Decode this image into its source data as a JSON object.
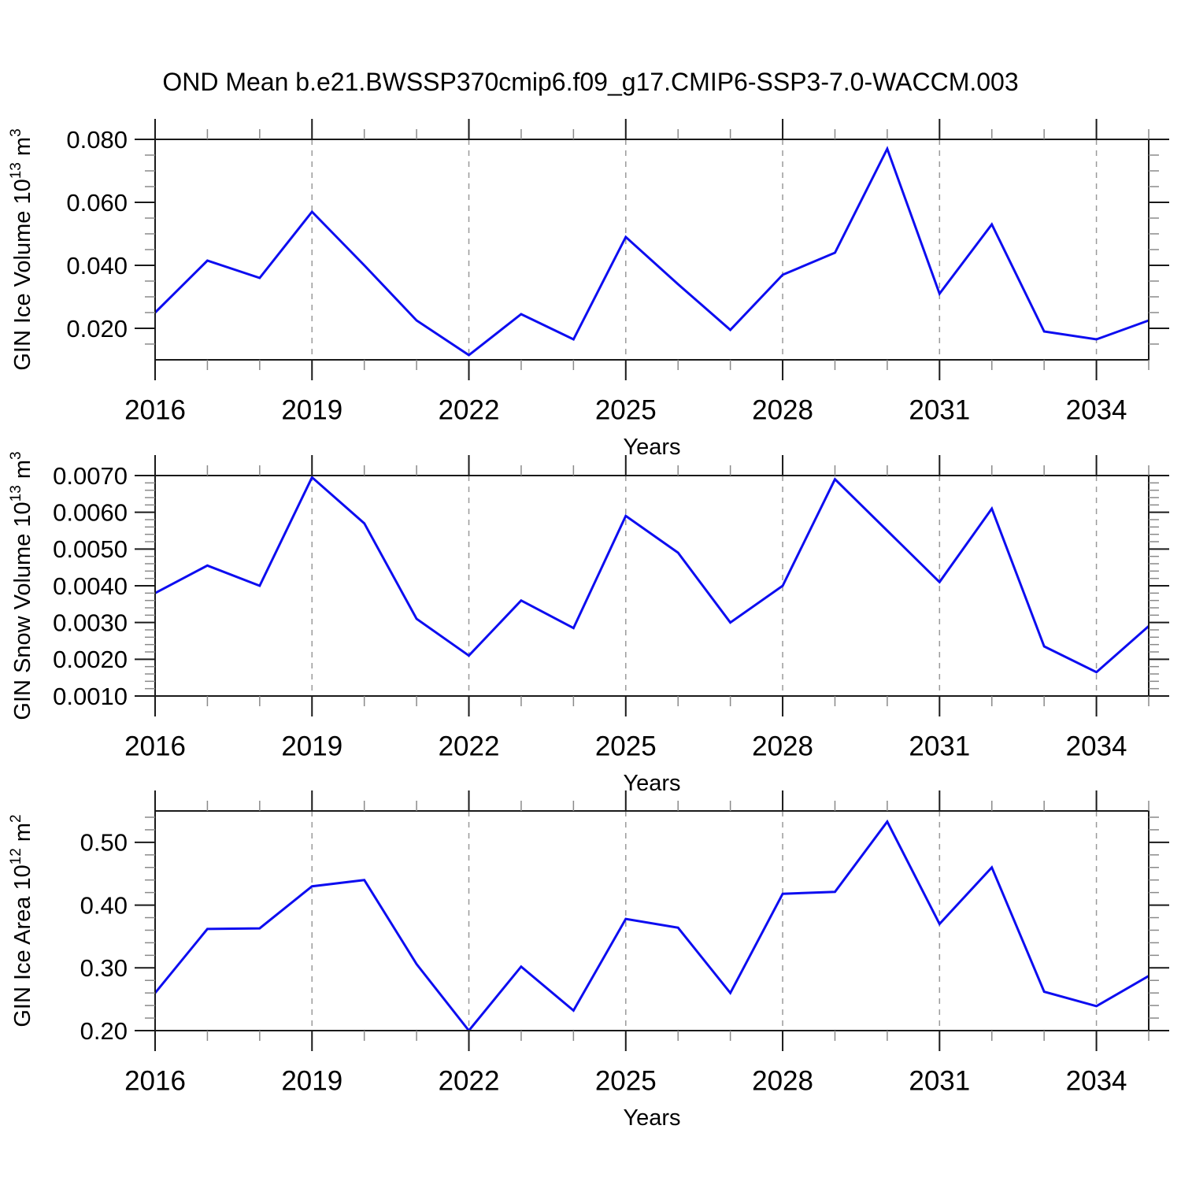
{
  "title": "OND Mean b.e21.BWSSP370cmip6.f09_g17.CMIP6-SSP3-7.0-WACCM.003",
  "colors": {
    "line": "#0d0df0",
    "frame": "#1a1a1a",
    "minor_tick": "#8a8a8a",
    "dashed_grid": "#9a9a9a",
    "text": "#000000",
    "background": "#ffffff"
  },
  "chart_data": [
    {
      "type": "line",
      "name": "gin-ice-volume",
      "title": "",
      "xlabel": "Years",
      "ylabel": "GIN Ice Volume 10^13 m^3",
      "ylabel_parts": [
        {
          "text": "GIN Ice Volume 10"
        },
        {
          "text": "13",
          "sup": true
        },
        {
          "text": " m"
        },
        {
          "text": "3",
          "sup": true
        }
      ],
      "x": [
        2016,
        2017,
        2018,
        2019,
        2020,
        2021,
        2022,
        2023,
        2024,
        2025,
        2026,
        2027,
        2028,
        2029,
        2030,
        2031,
        2032,
        2033,
        2034,
        2035
      ],
      "values": [
        0.025,
        0.0415,
        0.036,
        0.057,
        0.04,
        0.0225,
        0.0115,
        0.0245,
        0.0165,
        0.049,
        0.034,
        0.0195,
        0.037,
        0.044,
        0.077,
        0.031,
        0.053,
        0.019,
        0.0165,
        0.0225
      ],
      "xlim": [
        2016,
        2035
      ],
      "ylim": [
        0.01,
        0.08
      ],
      "x_major_ticks": [
        2016,
        2019,
        2022,
        2025,
        2028,
        2031,
        2034
      ],
      "x_tick_labels": [
        "2016",
        "2019",
        "2022",
        "2025",
        "2028",
        "2031",
        "2034"
      ],
      "x_minor_step": 1,
      "y_major_ticks": [
        0.02,
        0.04,
        0.06,
        0.08
      ],
      "y_tick_labels": [
        "0.020",
        "0.040",
        "0.060",
        "0.080"
      ],
      "y_minor_step": 0.005,
      "grid_x_dashed": [
        2019,
        2022,
        2025,
        2028,
        2031,
        2034
      ],
      "legend": "none"
    },
    {
      "type": "line",
      "name": "gin-snow-volume",
      "title": "",
      "xlabel": "Years",
      "ylabel": "GIN Snow Volume 10^13 m^3",
      "ylabel_parts": [
        {
          "text": "GIN Snow Volume 10"
        },
        {
          "text": "13",
          "sup": true
        },
        {
          "text": " m"
        },
        {
          "text": "3",
          "sup": true
        }
      ],
      "x": [
        2016,
        2017,
        2018,
        2019,
        2020,
        2021,
        2022,
        2023,
        2024,
        2025,
        2026,
        2027,
        2028,
        2029,
        2030,
        2031,
        2032,
        2033,
        2034,
        2035
      ],
      "values": [
        0.0038,
        0.00455,
        0.004,
        0.00695,
        0.0057,
        0.0031,
        0.0021,
        0.0036,
        0.00285,
        0.0059,
        0.0049,
        0.003,
        0.004,
        0.0069,
        0.0055,
        0.0041,
        0.0061,
        0.00235,
        0.00165,
        0.0029
      ],
      "xlim": [
        2016,
        2035
      ],
      "ylim": [
        0.001,
        0.007
      ],
      "x_major_ticks": [
        2016,
        2019,
        2022,
        2025,
        2028,
        2031,
        2034
      ],
      "x_tick_labels": [
        "2016",
        "2019",
        "2022",
        "2025",
        "2028",
        "2031",
        "2034"
      ],
      "x_minor_step": 1,
      "y_major_ticks": [
        0.001,
        0.002,
        0.003,
        0.004,
        0.005,
        0.006,
        0.007
      ],
      "y_tick_labels": [
        "0.0010",
        "0.0020",
        "0.0030",
        "0.0040",
        "0.0050",
        "0.0060",
        "0.0070"
      ],
      "y_minor_step": 0.0002,
      "grid_x_dashed": [
        2019,
        2022,
        2025,
        2028,
        2031,
        2034
      ],
      "legend": "none"
    },
    {
      "type": "line",
      "name": "gin-ice-area",
      "title": "",
      "xlabel": "Years",
      "ylabel": "GIN Ice Area 10^12 m^2",
      "ylabel_parts": [
        {
          "text": "GIN Ice Area 10"
        },
        {
          "text": "12",
          "sup": true
        },
        {
          "text": " m"
        },
        {
          "text": "2",
          "sup": true
        }
      ],
      "x": [
        2016,
        2017,
        2018,
        2019,
        2020,
        2021,
        2022,
        2023,
        2024,
        2025,
        2026,
        2027,
        2028,
        2029,
        2030,
        2031,
        2032,
        2033,
        2034,
        2035
      ],
      "values": [
        0.26,
        0.362,
        0.363,
        0.43,
        0.44,
        0.306,
        0.2,
        0.302,
        0.232,
        0.378,
        0.364,
        0.26,
        0.418,
        0.421,
        0.533,
        0.37,
        0.46,
        0.262,
        0.239,
        0.287
      ],
      "xlim": [
        2016,
        2035
      ],
      "ylim": [
        0.2,
        0.55
      ],
      "x_major_ticks": [
        2016,
        2019,
        2022,
        2025,
        2028,
        2031,
        2034
      ],
      "x_tick_labels": [
        "2016",
        "2019",
        "2022",
        "2025",
        "2028",
        "2031",
        "2034"
      ],
      "x_minor_step": 1,
      "y_major_ticks": [
        0.2,
        0.3,
        0.4,
        0.5
      ],
      "y_tick_labels": [
        "0.20",
        "0.30",
        "0.40",
        "0.50"
      ],
      "y_minor_step": 0.02,
      "grid_x_dashed": [
        2019,
        2022,
        2025,
        2028,
        2031,
        2034
      ],
      "legend": "none"
    }
  ]
}
